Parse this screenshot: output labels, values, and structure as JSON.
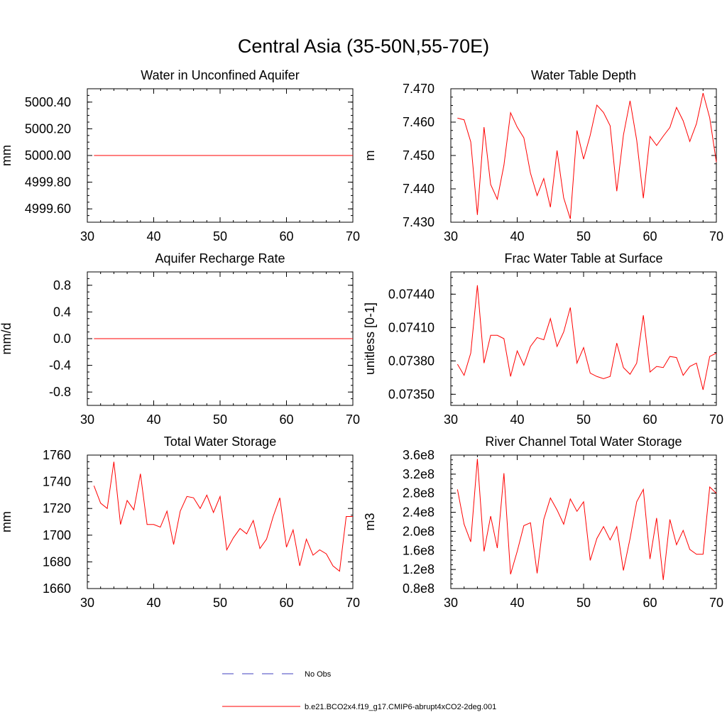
{
  "figure_title": "Central Asia (35-50N,55-70E)",
  "legend": [
    {
      "label": "No Obs",
      "color": "#4040c0",
      "style": "dashed"
    },
    {
      "label": "b.e21.BCO2x4.f19_g17.CMIP6-abrupt4xCO2-2deg.001",
      "color": "#ff0000",
      "style": "solid"
    }
  ],
  "chart_data": [
    {
      "type": "line",
      "title": "Water in Unconfined Aquifer",
      "ylabel": "mm",
      "xlim": [
        30,
        70
      ],
      "ylim": [
        4999.5,
        5000.5
      ],
      "xticks": [
        30,
        40,
        50,
        60,
        70
      ],
      "xtick_labels": [
        "30",
        "40",
        "50",
        "60",
        "70"
      ],
      "yticks": [
        4999.6,
        4999.8,
        5000.0,
        5000.2,
        5000.4
      ],
      "ytick_labels": [
        "4999.60",
        "4999.80",
        "5000.00",
        "5000.20",
        "5000.40"
      ],
      "series": [
        {
          "color": "#ff0000",
          "x_start": 31,
          "values": [
            5000,
            5000,
            5000,
            5000,
            5000,
            5000,
            5000,
            5000,
            5000,
            5000,
            5000,
            5000,
            5000,
            5000,
            5000,
            5000,
            5000,
            5000,
            5000,
            5000,
            5000,
            5000,
            5000,
            5000,
            5000,
            5000,
            5000,
            5000,
            5000,
            5000,
            5000,
            5000,
            5000,
            5000,
            5000,
            5000,
            5000,
            5000,
            5000,
            5000
          ]
        }
      ]
    },
    {
      "type": "line",
      "title": "Water Table Depth",
      "ylabel": "m",
      "xlim": [
        30,
        70
      ],
      "ylim": [
        7.43,
        7.47
      ],
      "xticks": [
        30,
        40,
        50,
        60,
        70
      ],
      "xtick_labels": [
        "30",
        "40",
        "50",
        "60",
        "70"
      ],
      "yticks": [
        7.43,
        7.44,
        7.45,
        7.46,
        7.47
      ],
      "ytick_labels": [
        "7.430",
        "7.440",
        "7.450",
        "7.460",
        "7.470"
      ],
      "series": [
        {
          "color": "#ff0000",
          "x_start": 31,
          "values": [
            7.4612,
            7.4607,
            7.4541,
            7.4322,
            7.4585,
            7.4413,
            7.4369,
            7.4471,
            7.4628,
            7.4585,
            7.4553,
            7.4447,
            7.438,
            7.4431,
            7.4345,
            7.4515,
            7.4373,
            7.431,
            7.4575,
            7.4489,
            7.4561,
            7.4651,
            7.4629,
            7.4589,
            7.4393,
            7.4561,
            7.4664,
            7.4546,
            7.4372,
            7.4557,
            7.453,
            7.4558,
            7.4584,
            7.4644,
            7.4604,
            7.4542,
            7.4595,
            7.4687,
            7.4613,
            7.448
          ]
        }
      ]
    },
    {
      "type": "line",
      "title": "Aquifer Recharge Rate",
      "ylabel": "mm/d",
      "xlim": [
        30,
        70
      ],
      "ylim": [
        -1.0,
        1.0
      ],
      "xticks": [
        30,
        40,
        50,
        60,
        70
      ],
      "xtick_labels": [
        "30",
        "40",
        "50",
        "60",
        "70"
      ],
      "yticks": [
        -0.8,
        -0.4,
        0.0,
        0.4,
        0.8
      ],
      "ytick_labels": [
        "-0.8",
        "-0.4",
        "0.0",
        "0.4",
        "0.8"
      ],
      "series": [
        {
          "color": "#ff0000",
          "x_start": 31,
          "values": [
            0,
            0,
            0,
            0,
            0,
            0,
            0,
            0,
            0,
            0,
            0,
            0,
            0,
            0,
            0,
            0,
            0,
            0,
            0,
            0,
            0,
            0,
            0,
            0,
            0,
            0,
            0,
            0,
            0,
            0,
            0,
            0,
            0,
            0,
            0,
            0,
            0,
            0,
            0,
            0
          ]
        }
      ]
    },
    {
      "type": "line",
      "title": "Frac Water Table at Surface",
      "ylabel": "unitless [0-1]",
      "xlim": [
        30,
        70
      ],
      "ylim": [
        0.0734,
        0.0746
      ],
      "xticks": [
        30,
        40,
        50,
        60,
        70
      ],
      "xtick_labels": [
        "30",
        "40",
        "50",
        "60",
        "70"
      ],
      "yticks": [
        0.0735,
        0.0738,
        0.0741,
        0.0744
      ],
      "ytick_labels": [
        "0.07350",
        "0.07380",
        "0.07410",
        "0.07440"
      ],
      "series": [
        {
          "color": "#ff0000",
          "x_start": 31,
          "values": [
            0.07377,
            0.07367,
            0.07387,
            0.07448,
            0.07378,
            0.07403,
            0.07403,
            0.074,
            0.07366,
            0.07389,
            0.07376,
            0.07393,
            0.07401,
            0.07399,
            0.07418,
            0.07393,
            0.07406,
            0.07428,
            0.07378,
            0.07392,
            0.07369,
            0.07366,
            0.07364,
            0.07366,
            0.07396,
            0.07374,
            0.07368,
            0.07378,
            0.07421,
            0.0737,
            0.07375,
            0.07374,
            0.07384,
            0.07383,
            0.07367,
            0.07375,
            0.07378,
            0.07354,
            0.07384,
            0.07387
          ]
        }
      ]
    },
    {
      "type": "line",
      "title": "Total Water Storage",
      "ylabel": "mm",
      "xlim": [
        30,
        70
      ],
      "ylim": [
        1660,
        1760
      ],
      "xticks": [
        30,
        40,
        50,
        60,
        70
      ],
      "xtick_labels": [
        "30",
        "40",
        "50",
        "60",
        "70"
      ],
      "yticks": [
        1660,
        1680,
        1700,
        1720,
        1740,
        1760
      ],
      "ytick_labels": [
        "1660",
        "1680",
        "1700",
        "1720",
        "1740",
        "1760"
      ],
      "series": [
        {
          "color": "#ff0000",
          "x_start": 31,
          "values": [
            1737,
            1724,
            1720,
            1755,
            1708,
            1726,
            1719,
            1746,
            1708,
            1708,
            1706,
            1718,
            1693,
            1718,
            1729,
            1728,
            1720,
            1730,
            1717,
            1729,
            1689,
            1698,
            1705,
            1701,
            1711,
            1690,
            1697,
            1714,
            1728,
            1691,
            1704,
            1677,
            1697,
            1685,
            1689,
            1686,
            1677,
            1673,
            1714,
            1714
          ]
        }
      ]
    },
    {
      "type": "line",
      "title": "River Channel Total Water Storage",
      "ylabel": "m3",
      "xlim": [
        30,
        70
      ],
      "ylim": [
        0.8,
        3.6
      ],
      "xticks": [
        30,
        40,
        50,
        60,
        70
      ],
      "xtick_labels": [
        "30",
        "40",
        "50",
        "60",
        "70"
      ],
      "yticks": [
        0.8,
        1.2,
        1.6,
        2.0,
        2.4,
        2.8,
        3.2,
        3.6
      ],
      "ytick_labels": [
        "0.8e8",
        "1.2e8",
        "1.6e8",
        "2.0e8",
        "2.4e8",
        "2.8e8",
        "3.2e8",
        "3.6e8"
      ],
      "value_scale": "1e8",
      "series": [
        {
          "color": "#ff0000",
          "x_start": 31,
          "values": [
            2.88,
            2.15,
            1.78,
            3.52,
            1.58,
            2.32,
            1.65,
            3.22,
            1.1,
            1.58,
            2.12,
            2.18,
            1.12,
            2.25,
            2.7,
            2.45,
            2.15,
            2.68,
            2.42,
            2.62,
            1.39,
            1.85,
            2.1,
            1.82,
            2.1,
            1.18,
            1.85,
            2.62,
            2.88,
            1.42,
            2.28,
            0.98,
            2.25,
            1.72,
            2.02,
            1.62,
            1.52,
            1.52,
            2.93,
            2.8
          ]
        }
      ]
    }
  ]
}
